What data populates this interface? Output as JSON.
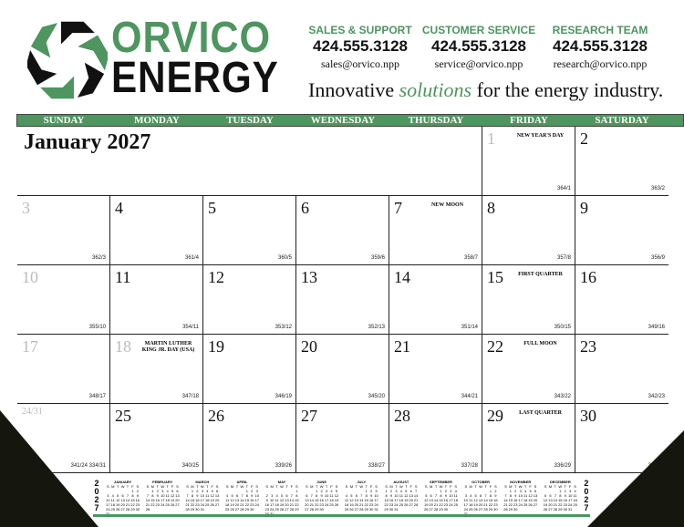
{
  "brand": {
    "line1": "ORVICO",
    "line2": "ENERGY",
    "colors": {
      "green": "#4e9560",
      "black": "#111111"
    }
  },
  "contacts": [
    {
      "title": "SALES & SUPPORT",
      "phone": "424.555.3128",
      "email": "sales@orvico.npp"
    },
    {
      "title": "CUSTOMER SERVICE",
      "phone": "424.555.3128",
      "email": "service@orvico.npp"
    },
    {
      "title": "RESEARCH TEAM",
      "phone": "424.555.3128",
      "email": "research@orvico.npp"
    }
  ],
  "tagline": {
    "pre": "Innovative ",
    "em": "solutions",
    "post": " for the energy industry."
  },
  "weekdays": [
    "SUNDAY",
    "MONDAY",
    "TUESDAY",
    "WEDNESDAY",
    "THURSDAY",
    "FRIDAY",
    "SATURDAY"
  ],
  "month_title": "January 2027",
  "cells": [
    {
      "day": "1",
      "grey": true,
      "note": "NEW YEAR'S DAY",
      "count": "364/1"
    },
    {
      "day": "2",
      "count": "363/2"
    },
    {
      "day": "3",
      "grey": true,
      "count": "362/3"
    },
    {
      "day": "4",
      "count": "361/4"
    },
    {
      "day": "5",
      "count": "360/5"
    },
    {
      "day": "6",
      "count": "359/6"
    },
    {
      "day": "7",
      "note": "NEW MOON",
      "count": "358/7"
    },
    {
      "day": "8",
      "count": "357/8"
    },
    {
      "day": "9",
      "count": "356/9"
    },
    {
      "day": "10",
      "grey": true,
      "count": "355/10"
    },
    {
      "day": "11",
      "count": "354/11"
    },
    {
      "day": "12",
      "count": "353/12"
    },
    {
      "day": "13",
      "count": "352/13"
    },
    {
      "day": "14",
      "count": "351/14"
    },
    {
      "day": "15",
      "note": "FIRST QUARTER",
      "count": "350/15"
    },
    {
      "day": "16",
      "count": "349/16"
    },
    {
      "day": "17",
      "grey": true,
      "count": "348/17"
    },
    {
      "day": "18",
      "grey": true,
      "note": "MARTIN LUTHER KING JR. DAY (USA)",
      "count": "347/18"
    },
    {
      "day": "19",
      "count": "346/19"
    },
    {
      "day": "20",
      "count": "345/20"
    },
    {
      "day": "21",
      "count": "344/21"
    },
    {
      "day": "22",
      "note": "FULL MOON",
      "count": "343/22"
    },
    {
      "day": "23",
      "count": "342/23"
    },
    {
      "day": "24/31",
      "grey": true,
      "count": "341/24 334/31"
    },
    {
      "day": "25",
      "count": "340/25"
    },
    {
      "day": "26",
      "count": "339/26"
    },
    {
      "day": "27",
      "count": "338/27"
    },
    {
      "day": "28",
      "count": "337/28"
    },
    {
      "day": "29",
      "note": "LAST QUARTER",
      "count": "336/29"
    },
    {
      "day": "30",
      "count": "335/30"
    }
  ],
  "mini_calendar": {
    "year": "2027",
    "weekday_letters": [
      "S",
      "M",
      "T",
      "W",
      "T",
      "F",
      "S"
    ],
    "months": [
      {
        "name": "JANUARY",
        "start": 5,
        "days": 31
      },
      {
        "name": "FEBRUARY",
        "start": 1,
        "days": 28
      },
      {
        "name": "MARCH",
        "start": 1,
        "days": 31
      },
      {
        "name": "APRIL",
        "start": 4,
        "days": 30
      },
      {
        "name": "MAY",
        "start": 6,
        "days": 31
      },
      {
        "name": "JUNE",
        "start": 2,
        "days": 30
      },
      {
        "name": "JULY",
        "start": 4,
        "days": 31
      },
      {
        "name": "AUGUST",
        "start": 0,
        "days": 31
      },
      {
        "name": "SEPTEMBER",
        "start": 3,
        "days": 30
      },
      {
        "name": "OCTOBER",
        "start": 5,
        "days": 31
      },
      {
        "name": "NOVEMBER",
        "start": 1,
        "days": 30
      },
      {
        "name": "DECEMBER",
        "start": 3,
        "days": 31
      }
    ]
  }
}
